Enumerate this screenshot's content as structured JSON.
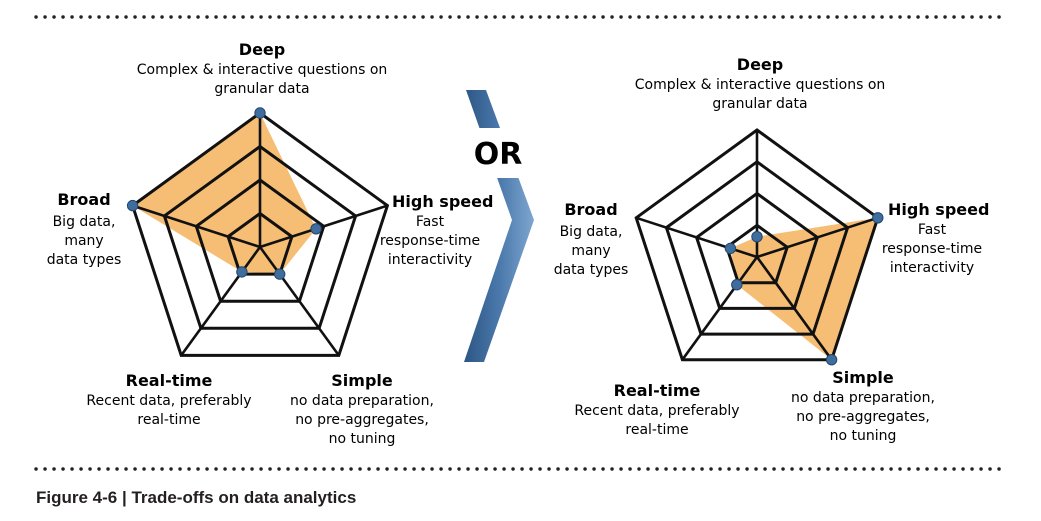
{
  "or_label": "OR",
  "caption": "Figure 4-6 | Trade-offs on data analytics",
  "colors": {
    "fill": "#f5b766",
    "grid": "#111111",
    "marker": "#3f6e9e",
    "chevron": "#4a78ab",
    "divider": "#222222"
  },
  "axes": [
    {
      "key": "deep",
      "title": "Deep",
      "lines": [
        "Complex & interactive questions on",
        "granular data"
      ]
    },
    {
      "key": "high_speed",
      "title": "High speed",
      "lines": [
        "Fast",
        "response-time",
        "interactivity"
      ]
    },
    {
      "key": "simple",
      "title": "Simple",
      "lines": [
        "no data preparation,",
        "no pre-aggregates,",
        "no tuning"
      ]
    },
    {
      "key": "real_time",
      "title": "Real-time",
      "lines": [
        "Recent data, preferably",
        "real-time"
      ]
    },
    {
      "key": "broad",
      "title": "Broad",
      "lines": [
        "Big data,",
        "many",
        "data types"
      ]
    }
  ],
  "charts": [
    {
      "name": "left-radar",
      "levels": 4,
      "values": [
        1.0,
        0.44,
        0.25,
        0.23,
        1.0
      ]
    },
    {
      "name": "right-radar",
      "levels": 4,
      "values": [
        0.16,
        1.0,
        1.0,
        0.27,
        0.22
      ]
    }
  ]
}
